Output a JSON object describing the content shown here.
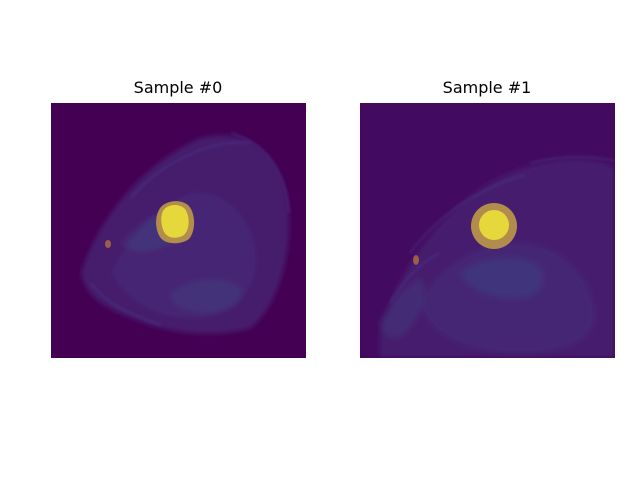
{
  "figure": {
    "panels": [
      {
        "title": "Sample #0",
        "image": "cardiac MRI slice with segmentation overlay"
      },
      {
        "title": "Sample #1",
        "image": "cardiac MRI slice with segmentation overlay"
      }
    ]
  },
  "colors": {
    "background": "#440154",
    "tissue_dim": "#46337e",
    "tissue_mid": "#3b528b",
    "ring": "#b8924a",
    "core": "#e6d83a",
    "orange_spot": "#c07a3a"
  }
}
